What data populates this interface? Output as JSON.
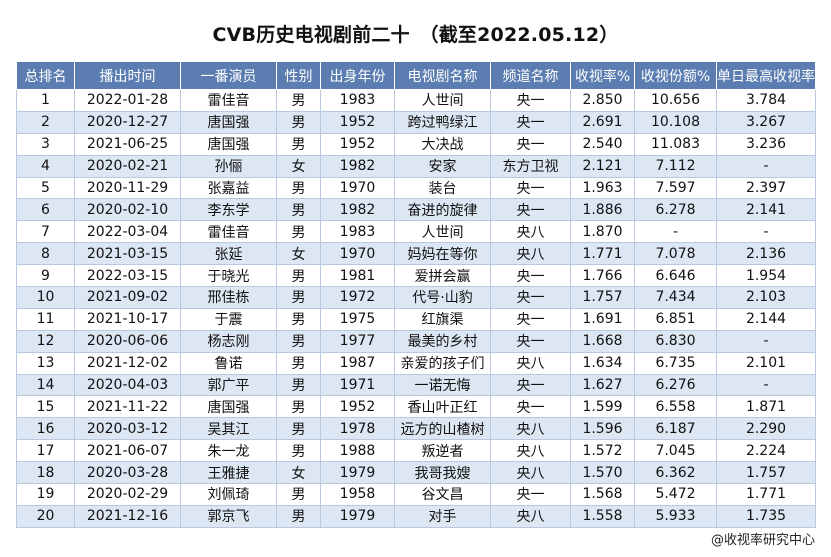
{
  "title": "CVB历史电视剧前二十　（截至2022.05.12）",
  "headers": [
    "总排名",
    "播出时间",
    "一番演员",
    "性别",
    "出身年份",
    "电视剧名称",
    "频道名称",
    "收视率%",
    "收视份额%",
    "单日最高收视率%"
  ],
  "rows": [
    [
      "1",
      "2022-01-28",
      "雷佳音",
      "男",
      "1983",
      "人世间",
      "央一",
      "2.850",
      "10.656",
      "3.784"
    ],
    [
      "2",
      "2020-12-27",
      "唐国强",
      "男",
      "1952",
      "跨过鸭绿江",
      "央一",
      "2.691",
      "10.108",
      "3.267"
    ],
    [
      "3",
      "2021-06-25",
      "唐国强",
      "男",
      "1952",
      "大决战",
      "央一",
      "2.540",
      "11.083",
      "3.236"
    ],
    [
      "4",
      "2020-02-21",
      "孙俪",
      "女",
      "1982",
      "安家",
      "东方卫视",
      "2.121",
      "7.112",
      "-"
    ],
    [
      "5",
      "2020-11-29",
      "张嘉益",
      "男",
      "1970",
      "装台",
      "央一",
      "1.963",
      "7.597",
      "2.397"
    ],
    [
      "6",
      "2020-02-10",
      "李东学",
      "男",
      "1982",
      "奋进的旋律",
      "央一",
      "1.886",
      "6.278",
      "2.141"
    ],
    [
      "7",
      "2022-03-04",
      "雷佳音",
      "男",
      "1983",
      "人世间",
      "央八",
      "1.870",
      "-",
      "-"
    ],
    [
      "8",
      "2021-03-15",
      "张延",
      "女",
      "1970",
      "妈妈在等你",
      "央八",
      "1.771",
      "7.078",
      "2.136"
    ],
    [
      "9",
      "2022-03-15",
      "于晓光",
      "男",
      "1981",
      "爱拼会赢",
      "央一",
      "1.766",
      "6.646",
      "1.954"
    ],
    [
      "10",
      "2021-09-02",
      "邢佳栋",
      "男",
      "1972",
      "代号·山豹",
      "央一",
      "1.757",
      "7.434",
      "2.103"
    ],
    [
      "11",
      "2021-10-17",
      "于震",
      "男",
      "1975",
      "红旗渠",
      "央一",
      "1.691",
      "6.851",
      "2.144"
    ],
    [
      "12",
      "2020-06-06",
      "杨志刚",
      "男",
      "1977",
      "最美的乡村",
      "央一",
      "1.668",
      "6.830",
      "-"
    ],
    [
      "13",
      "2021-12-02",
      "鲁诺",
      "男",
      "1987",
      "亲爱的孩子们",
      "央八",
      "1.634",
      "6.735",
      "2.101"
    ],
    [
      "14",
      "2020-04-03",
      "郭广平",
      "男",
      "1971",
      "一诺无悔",
      "央一",
      "1.627",
      "6.276",
      "-"
    ],
    [
      "15",
      "2021-11-22",
      "唐国强",
      "男",
      "1952",
      "香山叶正红",
      "央一",
      "1.599",
      "6.558",
      "1.871"
    ],
    [
      "16",
      "2020-03-12",
      "吴其江",
      "男",
      "1978",
      "远方的山楂树",
      "央八",
      "1.596",
      "6.187",
      "2.290"
    ],
    [
      "17",
      "2021-06-07",
      "朱一龙",
      "男",
      "1988",
      "叛逆者",
      "央八",
      "1.572",
      "7.045",
      "2.224"
    ],
    [
      "18",
      "2020-03-28",
      "王雅捷",
      "女",
      "1979",
      "我哥我嫂",
      "央八",
      "1.570",
      "6.362",
      "1.757"
    ],
    [
      "19",
      "2020-02-29",
      "刘佩琦",
      "男",
      "1958",
      "谷文昌",
      "央一",
      "1.568",
      "5.472",
      "1.771"
    ],
    [
      "20",
      "2021-12-16",
      "郭京飞",
      "男",
      "1979",
      "对手",
      "央八",
      "1.558",
      "5.933",
      "1.735"
    ]
  ],
  "watermark": "@收视率研究中心",
  "colors": {
    "header_bg": "#5B7DB1",
    "stripe": "#dde6f3"
  }
}
